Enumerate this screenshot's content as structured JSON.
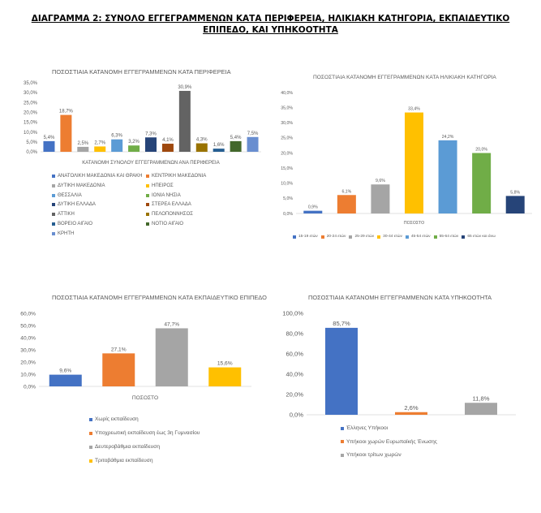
{
  "document": {
    "title_line1": "ΔΙΑΓΡΑΜΜΑ 2: ΣΥΝΟΛΟ ΕΓΓΕΓΡΑΜΜΕΝΩΝ ΚΑΤΑ ΠΕΡΙΦΕΡΕΙΑ, ΗΛΙΚΙΑΚΗ ΚΑΤΗΓΟΡΙΑ, ΕΚΠΑΙΔΕΥΤΙΚΟ",
    "title_line2": "ΕΠΙΠΕΔΟ, ΚΑΙ ΥΠΗΚΟΟΤΗΤΑ"
  },
  "chart_data": [
    {
      "type": "bar",
      "title": "ΠΟΣΟΣΤΙΑΙΑ ΚΑΤΑΝΟΜΗ ΕΓΓΕΓΡΑΜΜΕΝΩΝ ΚΑΤΑ ΠΕΡΙΦΕΡΕΙΑ",
      "xlabel": "ΚΑΤΑΝΟΜΗ ΣΥΝΟΛΟΥ ΕΓΓΕΓΡΑΜΜΕΝΩΝ ΑΝΑ ΠΕΡΙΦΕΡΕΙΑ",
      "ylim": [
        0,
        35
      ],
      "yticks": [
        "0,0%",
        "5,0%",
        "10,0%",
        "15,0%",
        "20,0%",
        "25,0%",
        "30,0%",
        "35,0%"
      ],
      "grid": false,
      "legend_position": "bottom",
      "series": [
        {
          "name": "ΑΝΑΤΟΛΙΚΗ ΜΑΚΕΔΟΝΙΑ ΚΑΙ ΘΡΑΚΗ",
          "value": 5.4,
          "label": "5,4%",
          "color": "#4472C4"
        },
        {
          "name": "ΚΕΝΤΡΙΚΗ ΜΑΚΕΔΟΝΙΑ",
          "value": 18.7,
          "label": "18,7%",
          "color": "#ED7D31"
        },
        {
          "name": "ΔΥΤΙΚΗ ΜΑΚΕΔΟΝΙΑ",
          "value": 2.5,
          "label": "2,5%",
          "color": "#A5A5A5"
        },
        {
          "name": "ΗΠΕΙΡΟΣ",
          "value": 2.7,
          "label": "2,7%",
          "color": "#FFC000"
        },
        {
          "name": "ΘΕΣΣΑΛΙΑ",
          "value": 6.3,
          "label": "6,3%",
          "color": "#5B9BD5"
        },
        {
          "name": "ΙΟΝΙΑ ΝΗΣΙΑ",
          "value": 3.2,
          "label": "3,2%",
          "color": "#70AD47"
        },
        {
          "name": "ΔΥΤΙΚΗ ΕΛΛΑΔΑ",
          "value": 7.3,
          "label": "7,3%",
          "color": "#264478"
        },
        {
          "name": "ΣΤΕΡΕΑ ΕΛΛΑΔΑ",
          "value": 4.1,
          "label": "4,1%",
          "color": "#9E480E"
        },
        {
          "name": "ΑΤΤΙΚΗ",
          "value": 30.9,
          "label": "30,9%",
          "color": "#636363"
        },
        {
          "name": "ΠΕΛΟΠΟΝΝΗΣΟΣ",
          "value": 4.3,
          "label": "4,3%",
          "color": "#997300"
        },
        {
          "name": "ΒΟΡΕΙΟ ΑΙΓΑΙΟ",
          "value": 1.6,
          "label": "1,6%",
          "color": "#255E91"
        },
        {
          "name": "ΝΟΤΙΟ ΑΙΓΑΙΟ",
          "value": 5.4,
          "label": "5,4%",
          "color": "#43682B"
        },
        {
          "name": "ΚΡΗΤΗ",
          "value": 7.5,
          "label": "7,5%",
          "color": "#698ED0"
        }
      ]
    },
    {
      "type": "bar",
      "title": "ΠΟΣΟΣΤΙΑΙΑ ΚΑΤΑΝΟΜΗ ΕΓΓΕΓΡΑΜΜΕΝΩΝ ΚΑΤΑ ΗΛΙΚΙΑΚΗ ΚΑΤΗΓΟΡΙΑ",
      "xlabel": "ΠΟΣΟΣΤΟ",
      "ylim": [
        0,
        40
      ],
      "yticks": [
        "0,0%",
        "5,0%",
        "10,0%",
        "15,0%",
        "20,0%",
        "25,0%",
        "30,0%",
        "35,0%",
        "40,0%"
      ],
      "grid": false,
      "legend_position": "bottom",
      "series": [
        {
          "name": "15-19 ετών",
          "value": 0.9,
          "label": "0,9%",
          "color": "#4472C4"
        },
        {
          "name": "20-24 ετών",
          "value": 6.1,
          "label": "6,1%",
          "color": "#ED7D31"
        },
        {
          "name": "25-29 ετών",
          "value": 9.6,
          "label": "9,6%",
          "color": "#A5A5A5"
        },
        {
          "name": "30-44 ετών",
          "value": 33.4,
          "label": "33,4%",
          "color": "#FFC000"
        },
        {
          "name": "45-54 ετών",
          "value": 24.2,
          "label": "24,2%",
          "color": "#5B9BD5"
        },
        {
          "name": "55-64 ετών",
          "value": 20.0,
          "label": "20,0%",
          "color": "#70AD47"
        },
        {
          "name": "65 ετών και άνω",
          "value": 5.8,
          "label": "5,8%",
          "color": "#264478"
        }
      ]
    },
    {
      "type": "bar",
      "title": "ΠΟΣΟΣΤΙΑΙΑ ΚΑΤΑΝΟΜΗ ΕΓΓΕΓΡΑΜΜΕΝΩΝ ΚΑΤΑ ΕΚΠΑΙΔΕΥΤΙΚΟ ΕΠΙΠΕΔΟ",
      "xlabel": "ΠΟΣΟΣΤΟ",
      "ylim": [
        0,
        60
      ],
      "yticks": [
        "0,0%",
        "10,0%",
        "20,0%",
        "30,0%",
        "40,0%",
        "50,0%",
        "60,0%"
      ],
      "grid": false,
      "legend_position": "bottom",
      "series": [
        {
          "name": "Χωρίς εκπαίδευση",
          "value": 9.6,
          "label": "9,6%",
          "color": "#4472C4"
        },
        {
          "name": "Υποχρεωτική εκπαίδευση έως 3η Γυμνασίου",
          "value": 27.1,
          "label": "27,1%",
          "color": "#ED7D31"
        },
        {
          "name": "Δευτεροβάθμια εκπαίδευση",
          "value": 47.7,
          "label": "47,7%",
          "color": "#A5A5A5"
        },
        {
          "name": "Τριτοβάθμια εκπαίδευση",
          "value": 15.6,
          "label": "15,6%",
          "color": "#FFC000"
        }
      ]
    },
    {
      "type": "bar",
      "title": "ΠΟΣΟΣΤΙΑΙΑ ΚΑΤΑΝΟΜΗ ΕΓΓΕΓΡΑΜΜΕΝΩΝ ΚΑΤΑ ΥΠΗΚΟΟΤΗΤΑ",
      "xlabel": "",
      "ylim": [
        0,
        100
      ],
      "yticks": [
        "0,0%",
        "20,0%",
        "40,0%",
        "60,0%",
        "80,0%",
        "100,0%"
      ],
      "grid": false,
      "legend_position": "bottom",
      "series": [
        {
          "name": "Έλληνες Υπήκοοι",
          "value": 85.7,
          "label": "85,7%",
          "color": "#4472C4"
        },
        {
          "name": "Υπήκοοι χωρών Ευρωπαϊκής Ένωσης",
          "value": 2.6,
          "label": "2,6%",
          "color": "#ED7D31"
        },
        {
          "name": "Υπήκοοι τρίτων χωρών",
          "value": 11.8,
          "label": "11,8%",
          "color": "#A5A5A5"
        }
      ]
    }
  ]
}
